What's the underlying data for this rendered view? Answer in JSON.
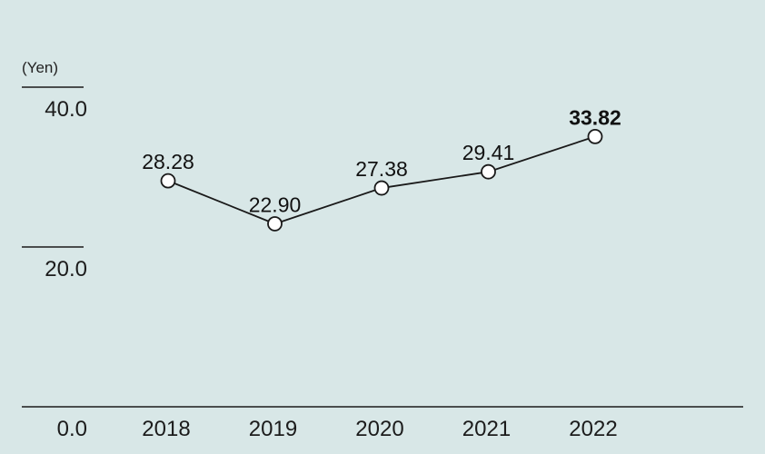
{
  "chart_data": {
    "type": "line",
    "title": "",
    "unit": "(Yen)",
    "xlabel": "",
    "ylabel": "",
    "categories": [
      "2018",
      "2019",
      "2020",
      "2021",
      "2022"
    ],
    "series": [
      {
        "values": [
          28.28,
          22.9,
          27.38,
          29.41,
          33.82
        ],
        "labels": [
          "28.28",
          "22.90",
          "27.38",
          "29.41",
          "33.82"
        ]
      }
    ],
    "yticks": [
      "0.0",
      "20.0",
      "40.0"
    ],
    "ylim": [
      0,
      40
    ],
    "grid": false,
    "legend": "none",
    "colors": {
      "background": "#d8e7e7",
      "line": "#1a1a1a",
      "marker_fill": "#ffffff",
      "axis": "#1a1a1a"
    }
  }
}
